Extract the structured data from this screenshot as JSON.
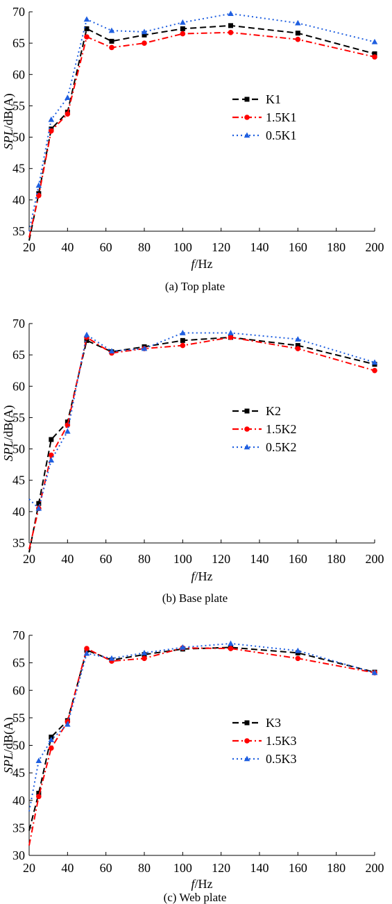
{
  "chart_data": [
    {
      "type": "line",
      "caption": "(a) Top plate",
      "xlabel_italic": "f",
      "xlabel_rest": "/Hz",
      "ylabel_italic": "SPL",
      "ylabel_rest": "/dB(A)",
      "xlim": [
        20,
        200
      ],
      "ylim": [
        35,
        70
      ],
      "xticks": [
        20,
        40,
        60,
        80,
        100,
        120,
        140,
        160,
        180,
        200
      ],
      "yticks": [
        35,
        40,
        45,
        50,
        55,
        60,
        65,
        70
      ],
      "x": [
        20,
        25,
        31.5,
        40,
        50,
        63,
        80,
        100,
        125,
        160,
        200
      ],
      "legend_position": "center-right",
      "series": [
        {
          "name": "K1",
          "color": "#000000",
          "marker": "square",
          "dash": "dash",
          "values": [
            33.5,
            41.0,
            51.3,
            54.0,
            67.3,
            65.3,
            66.3,
            67.3,
            67.8,
            66.6,
            63.3
          ]
        },
        {
          "name": "1.5K1",
          "color": "#ff0000",
          "marker": "circle",
          "dash": "dashdot",
          "values": [
            34.0,
            40.7,
            51.0,
            53.7,
            66.0,
            64.3,
            65.0,
            66.5,
            66.7,
            65.6,
            62.8
          ]
        },
        {
          "name": "0.5K1",
          "color": "#1f5fe0",
          "marker": "triangle",
          "dash": "dot",
          "values": [
            35.0,
            42.3,
            52.8,
            56.3,
            68.8,
            67.0,
            66.8,
            68.3,
            69.7,
            68.2,
            65.2
          ]
        }
      ]
    },
    {
      "type": "line",
      "caption": "(b) Base plate",
      "xlabel_italic": "f",
      "xlabel_rest": "/Hz",
      "ylabel_italic": "SPL",
      "ylabel_rest": "/dB(A)",
      "xlim": [
        20,
        200
      ],
      "ylim": [
        35,
        70
      ],
      "xticks": [
        20,
        40,
        60,
        80,
        100,
        120,
        140,
        160,
        180,
        200
      ],
      "yticks": [
        35,
        40,
        45,
        50,
        55,
        60,
        65,
        70
      ],
      "x": [
        20,
        25,
        31.5,
        40,
        50,
        63,
        80,
        100,
        125,
        160,
        200
      ],
      "legend_position": "center-right",
      "series": [
        {
          "name": "K2",
          "color": "#000000",
          "marker": "square",
          "dash": "dash",
          "values": [
            33.5,
            41.3,
            51.5,
            54.3,
            67.3,
            65.5,
            66.3,
            67.3,
            67.8,
            66.5,
            63.5
          ]
        },
        {
          "name": "1.5K2",
          "color": "#ff0000",
          "marker": "circle",
          "dash": "dashdot",
          "values": [
            34.0,
            40.5,
            49.0,
            53.8,
            67.8,
            65.3,
            66.0,
            66.5,
            67.8,
            66.0,
            62.5
          ]
        },
        {
          "name": "0.5K2",
          "color": "#1f5fe0",
          "marker": "triangle",
          "dash": "dot",
          "values": [
            42.0,
            40.5,
            48.2,
            52.8,
            68.2,
            65.6,
            66.0,
            68.5,
            68.5,
            67.5,
            63.8
          ]
        }
      ]
    },
    {
      "type": "line",
      "caption": "(c) Web plate",
      "xlabel_italic": "f",
      "xlabel_rest": "/Hz",
      "ylabel_italic": "SPL",
      "ylabel_rest": "/dB(A)",
      "xlim": [
        20,
        200
      ],
      "ylim": [
        30,
        70
      ],
      "xticks": [
        20,
        40,
        60,
        80,
        100,
        120,
        140,
        160,
        180,
        200
      ],
      "yticks": [
        30,
        35,
        40,
        45,
        50,
        55,
        60,
        65,
        70
      ],
      "x": [
        20,
        25,
        31.5,
        40,
        50,
        63,
        80,
        100,
        125,
        160,
        200
      ],
      "legend_position": "center-right",
      "series": [
        {
          "name": "K3",
          "color": "#000000",
          "marker": "square",
          "dash": "dash",
          "values": [
            34.5,
            41.3,
            51.5,
            54.5,
            67.3,
            65.5,
            66.5,
            67.5,
            67.8,
            66.8,
            63.3
          ]
        },
        {
          "name": "1.5K3",
          "color": "#ff0000",
          "marker": "circle",
          "dash": "dashdot",
          "values": [
            31.8,
            40.7,
            49.5,
            54.3,
            67.6,
            65.3,
            65.8,
            67.7,
            67.6,
            65.8,
            63.2
          ]
        },
        {
          "name": "0.5K3",
          "color": "#1f5fe0",
          "marker": "triangle",
          "dash": "dot",
          "values": [
            38.0,
            47.2,
            51.0,
            53.8,
            66.7,
            65.8,
            66.8,
            67.8,
            68.5,
            67.2,
            63.2
          ]
        }
      ]
    }
  ]
}
